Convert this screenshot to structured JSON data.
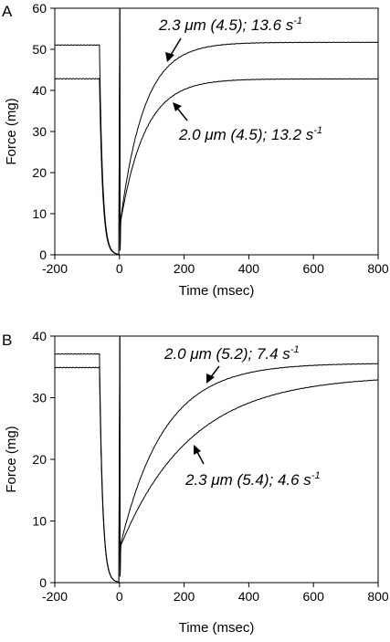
{
  "chart_data": [
    {
      "type": "line",
      "panel_label": "A",
      "xlabel": "Time (msec)",
      "ylabel": "Force (mg)",
      "xlim": [
        -200,
        800
      ],
      "ylim": [
        0,
        60
      ],
      "xticks": [
        "-200",
        "0",
        "200",
        "400",
        "600",
        "800"
      ],
      "yticks": [
        "0",
        "10",
        "20",
        "30",
        "40",
        "50",
        "60"
      ],
      "annotations": [
        {
          "text": "2.3 μm (4.5); 13.6 s",
          "sup": "-1"
        },
        {
          "text": "2.0 μm (4.5); 13.2 s",
          "sup": "-1"
        }
      ],
      "series": [
        {
          "plateau": 51.2,
          "release_start": -62,
          "min_force": 8.7,
          "recovery_final": 51.7,
          "rate_per_s": 13.6
        },
        {
          "plateau": 43.0,
          "release_start": -62,
          "min_force": 8.2,
          "recovery_final": 42.8,
          "rate_per_s": 13.2
        }
      ]
    },
    {
      "type": "line",
      "panel_label": "B",
      "xlabel": "Time (msec)",
      "ylabel": "Force (mg)",
      "xlim": [
        -200,
        800
      ],
      "ylim": [
        0,
        40
      ],
      "xticks": [
        "-200",
        "0",
        "200",
        "400",
        "600",
        "800"
      ],
      "yticks": [
        "0",
        "10",
        "20",
        "30",
        "40"
      ],
      "annotations": [
        {
          "text": "2.0 μm (5.2); 7.4 s",
          "sup": "-1"
        },
        {
          "text": "2.3 μm (5.4); 4.6 s",
          "sup": "-1"
        }
      ],
      "series": [
        {
          "plateau": 37.2,
          "release_start": -62,
          "min_force": 6.3,
          "recovery_final": 35.6,
          "rate_per_s": 7.4
        },
        {
          "plateau": 35.0,
          "release_start": -62,
          "min_force": 6.0,
          "recovery_final": 33.6,
          "rate_per_s": 4.6
        }
      ]
    }
  ]
}
